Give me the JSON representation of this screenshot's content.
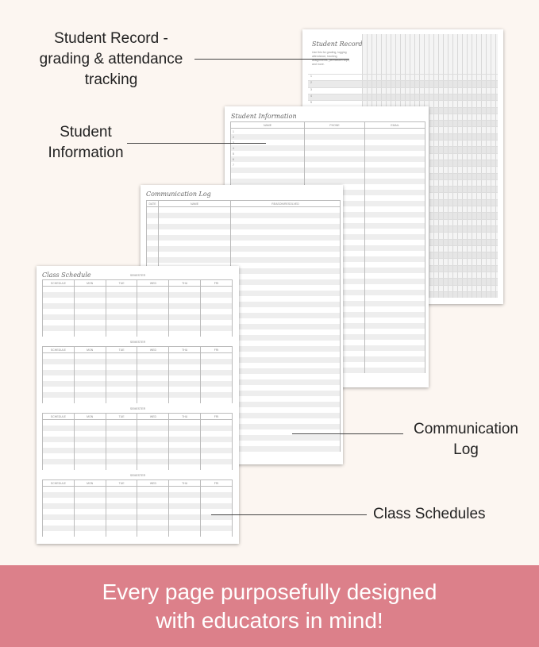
{
  "labels": {
    "student_record": "Student Record -\ngrading & attendance\ntracking",
    "student_information": "Student\nInformation",
    "communication_log": "Communication\nLog",
    "class_schedules": "Class Schedules"
  },
  "pages": {
    "student_record": {
      "title": "Student Record",
      "description": "Use this for grading, logging attendance, tracking assignments, permission slips, and more."
    },
    "student_information": {
      "title": "Student Information",
      "columns": [
        "NAME",
        "PHONE",
        "EMAIL"
      ]
    },
    "communication_log": {
      "title": "Communication Log",
      "columns": [
        "DATE",
        "NAME",
        "REASON/RESOLVED"
      ]
    },
    "class_schedule": {
      "title": "Class Schedule",
      "semester_label": "SEMESTER",
      "columns": [
        "SCHEDULE",
        "MON",
        "TUE",
        "WED",
        "THU",
        "FRI"
      ]
    }
  },
  "banner": {
    "text": "Every page purposefully designed\nwith educators in mind!"
  },
  "colors": {
    "background": "#fcf6f1",
    "banner": "#dc808a"
  }
}
